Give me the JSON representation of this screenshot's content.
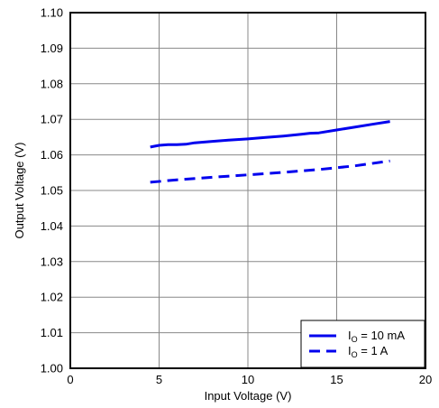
{
  "chart_data": {
    "type": "line",
    "xlabel": "Input Voltage (V)",
    "ylabel": "Output Voltage (V)",
    "xlim": [
      0,
      20
    ],
    "ylim": [
      1.0,
      1.1
    ],
    "x_ticks": [
      "0",
      "5",
      "10",
      "15",
      "20"
    ],
    "y_ticks": [
      "1.00",
      "1.01",
      "1.02",
      "1.03",
      "1.04",
      "1.05",
      "1.06",
      "1.07",
      "1.08",
      "1.09",
      "1.10"
    ],
    "grid": true,
    "legend_position": "bottom-right",
    "series": [
      {
        "name": "I_O = 10 mA",
        "legend_main": "I",
        "legend_sub": "O",
        "legend_rest": " = 10 mA",
        "style": "solid",
        "color": "#0000ee",
        "x": [
          4.5,
          5.0,
          5.5,
          6.0,
          6.5,
          7.0,
          8.0,
          9.0,
          10.0,
          11.0,
          12.0,
          13.0,
          13.5,
          14.0,
          15.0,
          16.0,
          17.0,
          18.0
        ],
        "y": [
          1.0622,
          1.0627,
          1.0629,
          1.0629,
          1.063,
          1.0634,
          1.0638,
          1.0642,
          1.0645,
          1.0649,
          1.0653,
          1.0658,
          1.0661,
          1.0662,
          1.067,
          1.0678,
          1.0686,
          1.0694
        ]
      },
      {
        "name": "I_O = 1 A",
        "legend_main": "I",
        "legend_sub": "O",
        "legend_rest": " = 1 A",
        "style": "dashed",
        "color": "#0000ee",
        "x": [
          4.5,
          6.0,
          8.0,
          10.0,
          12.0,
          14.0,
          16.0,
          18.0
        ],
        "y": [
          1.0523,
          1.053,
          1.0537,
          1.0544,
          1.0551,
          1.0559,
          1.0569,
          1.0583
        ]
      }
    ]
  }
}
